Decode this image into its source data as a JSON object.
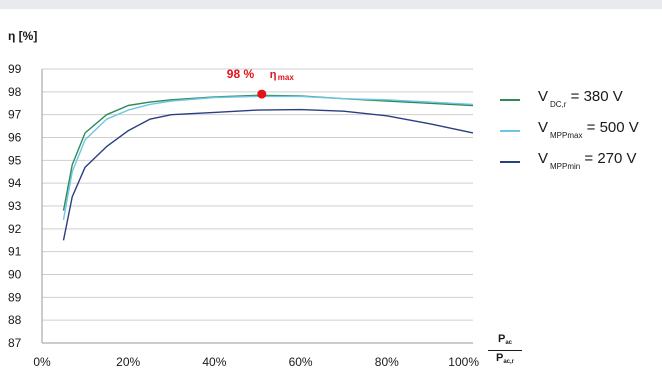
{
  "y_axis_title": "η [%]",
  "x_unit": {
    "numerator": "P",
    "numerator_sub": "ac",
    "denominator": "P",
    "denominator_sub": "ac,r"
  },
  "colors": {
    "green": "#2e8b57",
    "light_blue": "#6ec6e4",
    "dark_blue": "#2b3f80",
    "red": "#e2131c",
    "axis": "#9a9a9a",
    "grid": "#cfcfcf"
  },
  "legend": [
    {
      "label_main": "V",
      "label_sub": "DC,r",
      "label_rest": " = 380 V",
      "color": "#2e8b57"
    },
    {
      "label_main": "V",
      "label_sub": "MPPmax",
      "label_rest": " = 500 V",
      "color": "#6ec6e4"
    },
    {
      "label_main": "V",
      "label_sub": "MPPmin",
      "label_rest": " = 270 V",
      "color": "#2b3f80"
    }
  ],
  "chart_data": {
    "type": "line",
    "xlabel": "",
    "ylabel": "η [%]",
    "xlim": [
      0,
      100
    ],
    "ylim": [
      87,
      99
    ],
    "x_ticks": [
      0,
      20,
      40,
      60,
      80,
      100
    ],
    "x_tick_labels": [
      "0%",
      "20%",
      "40%",
      "60%",
      "80%",
      "100%"
    ],
    "y_ticks": [
      87,
      88,
      89,
      90,
      91,
      92,
      93,
      94,
      95,
      96,
      97,
      98,
      99
    ],
    "grid": "horizontal",
    "legend_position": "right",
    "series": [
      {
        "name": "V DC,r = 380 V",
        "color": "#2e8b57",
        "x": [
          5,
          7,
          10,
          15,
          20,
          25,
          30,
          40,
          50,
          60,
          70,
          80,
          90,
          100
        ],
        "y": [
          92.8,
          94.8,
          96.2,
          97.0,
          97.4,
          97.55,
          97.65,
          97.78,
          97.85,
          97.82,
          97.7,
          97.6,
          97.5,
          97.4
        ]
      },
      {
        "name": "V MPPmax = 500 V",
        "color": "#6ec6e4",
        "x": [
          5,
          7,
          10,
          15,
          20,
          25,
          30,
          40,
          50,
          60,
          70,
          80,
          90,
          100
        ],
        "y": [
          92.4,
          94.5,
          95.9,
          96.8,
          97.2,
          97.45,
          97.6,
          97.75,
          97.8,
          97.8,
          97.7,
          97.65,
          97.55,
          97.45
        ]
      },
      {
        "name": "V MPPmin = 270 V",
        "color": "#2b3f80",
        "x": [
          5,
          7,
          10,
          15,
          20,
          25,
          30,
          40,
          50,
          60,
          70,
          80,
          90,
          100
        ],
        "y": [
          91.5,
          93.4,
          94.7,
          95.6,
          96.3,
          96.8,
          97.0,
          97.1,
          97.2,
          97.22,
          97.15,
          96.95,
          96.6,
          96.2
        ]
      }
    ],
    "annotation": {
      "x": 51,
      "y": 97.9,
      "label": "98 %",
      "label_sub_main": "η",
      "label_sub": "max",
      "color": "#e2131c"
    }
  }
}
